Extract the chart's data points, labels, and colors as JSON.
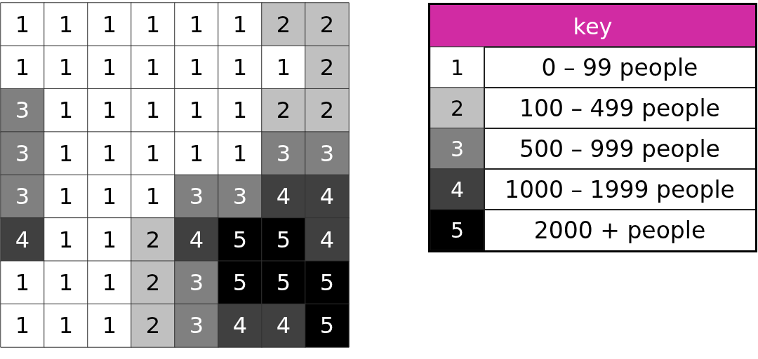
{
  "chart_data": [
    {
      "type": "heatmap",
      "categories": [
        null,
        null,
        null,
        null,
        null,
        null,
        null,
        null
      ],
      "y_categories": [
        null,
        null,
        null,
        null,
        null,
        null,
        null,
        null
      ],
      "cells": [
        [
          1,
          1,
          1,
          1,
          1,
          1,
          2,
          2
        ],
        [
          1,
          1,
          1,
          1,
          1,
          1,
          1,
          2
        ],
        [
          3,
          1,
          1,
          1,
          1,
          1,
          2,
          2
        ],
        [
          3,
          1,
          1,
          1,
          1,
          1,
          3,
          3
        ],
        [
          3,
          1,
          1,
          1,
          3,
          3,
          4,
          4
        ],
        [
          4,
          1,
          1,
          2,
          4,
          5,
          5,
          4
        ],
        [
          1,
          1,
          1,
          2,
          3,
          5,
          5,
          5
        ],
        [
          1,
          1,
          1,
          2,
          3,
          4,
          4,
          5
        ]
      ],
      "colors": [
        [
          "#ffffff",
          "#ffffff",
          "#ffffff",
          "#ffffff",
          "#ffffff",
          "#ffffff",
          "#c0c0c0",
          "#c0c0c0"
        ],
        [
          "#ffffff",
          "#ffffff",
          "#ffffff",
          "#ffffff",
          "#ffffff",
          "#ffffff",
          "#ffffff",
          "#c0c0c0"
        ],
        [
          "#808080",
          "#ffffff",
          "#ffffff",
          "#ffffff",
          "#ffffff",
          "#ffffff",
          "#c0c0c0",
          "#c0c0c0"
        ],
        [
          "#808080",
          "#ffffff",
          "#ffffff",
          "#ffffff",
          "#ffffff",
          "#ffffff",
          "#808080",
          "#808080"
        ],
        [
          "#808080",
          "#ffffff",
          "#ffffff",
          "#ffffff",
          "#808080",
          "#808080",
          "#404040",
          "#404040"
        ],
        [
          "#404040",
          "#ffffff",
          "#ffffff",
          "#c0c0c0",
          "#404040",
          "#000000",
          "#000000",
          "#404040"
        ],
        [
          "#ffffff",
          "#ffffff",
          "#ffffff",
          "#c0c0c0",
          "#808080",
          "#000000",
          "#000000",
          "#000000"
        ],
        [
          "#ffffff",
          "#ffffff",
          "#ffffff",
          "#c0c0c0",
          "#808080",
          "#404040",
          "#404040",
          "#000000"
        ]
      ],
      "data_labels": true
    },
    {
      "type": "heatmap",
      "title": "key",
      "categories": [
        null
      ],
      "y_categories": [
        null,
        null,
        null,
        null,
        null
      ],
      "y2_categories": [
        "0 – 99 people",
        "100 – 499 people",
        "500 – 999 people",
        "1000 – 1999 people",
        "2000 + people"
      ],
      "cells": [
        [
          1
        ],
        [
          2
        ],
        [
          3
        ],
        [
          4
        ],
        [
          5
        ]
      ],
      "colors": [
        [
          "#ffffff"
        ],
        [
          "#c0c0c0"
        ],
        [
          "#808080"
        ],
        [
          "#404040"
        ],
        [
          "#000000"
        ]
      ],
      "data_labels": true
    }
  ]
}
